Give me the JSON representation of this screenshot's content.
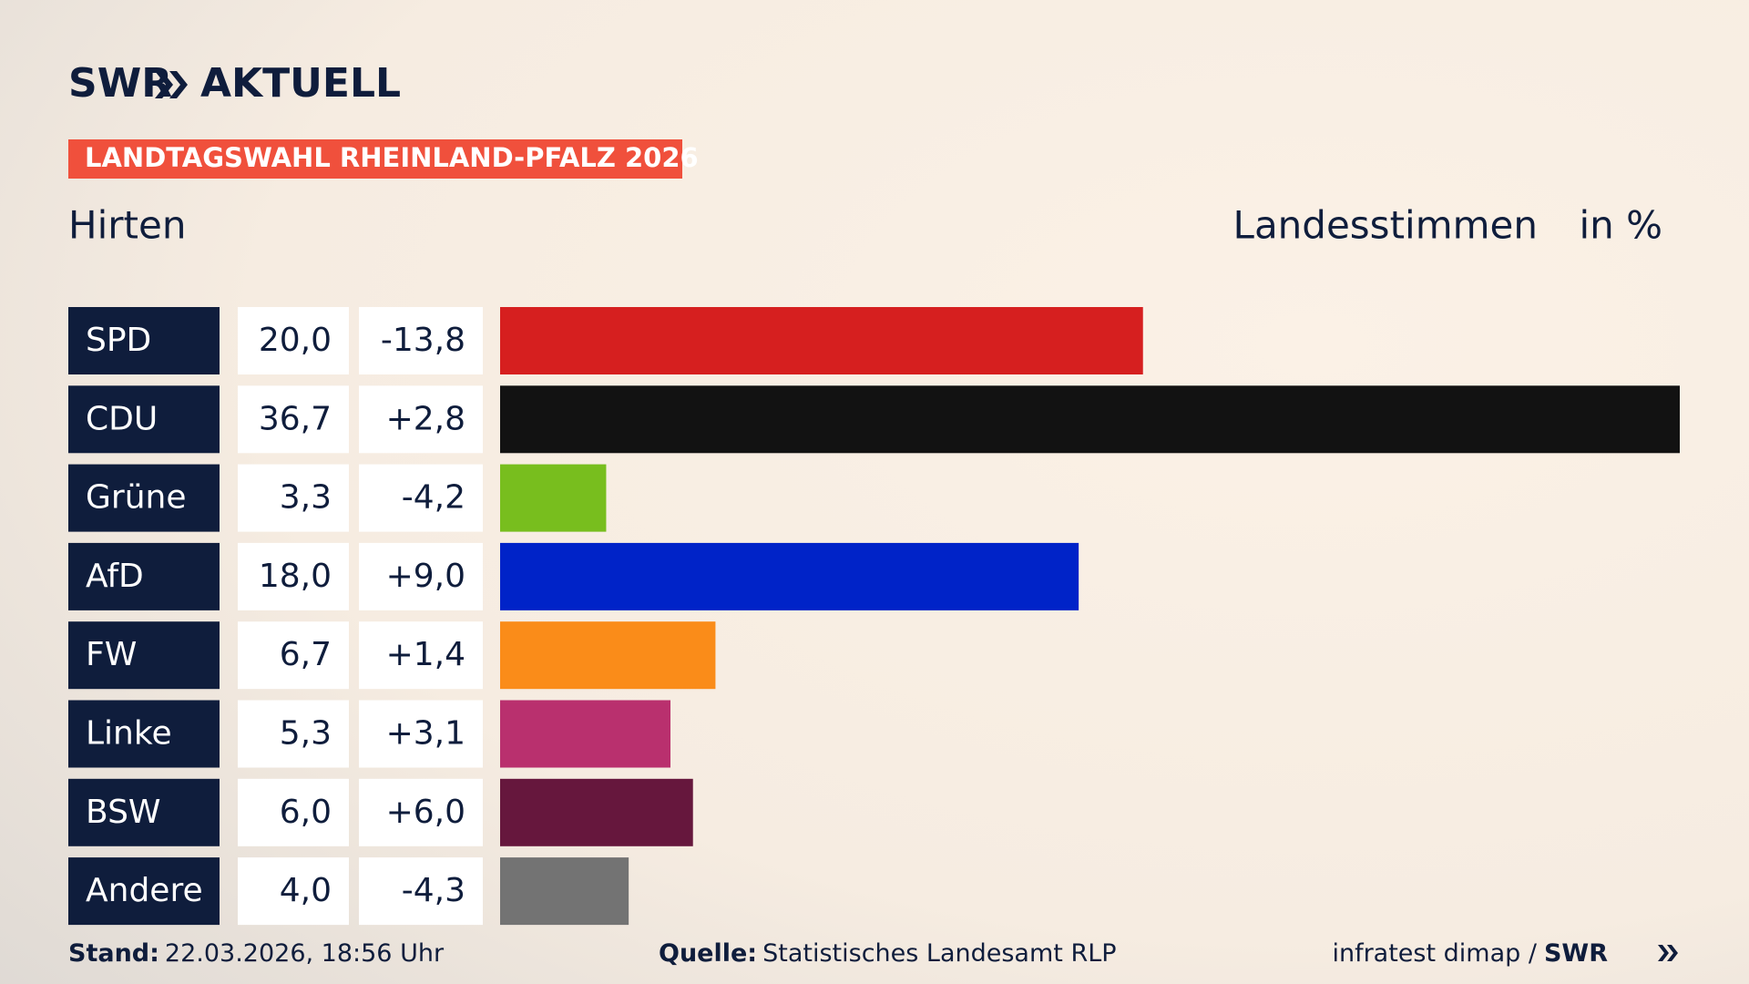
{
  "chart_data": {
    "type": "bar",
    "brand": "SWR",
    "brand_suffix": "AKTUELL",
    "banner": "LANDTAGSWAHL RHEINLAND-PFALZ 2026",
    "title": "Hirten",
    "value_label": "Landesstimmen",
    "unit": "in %",
    "categories": [
      "SPD",
      "CDU",
      "Grüne",
      "AfD",
      "FW",
      "Linke",
      "BSW",
      "Andere"
    ],
    "values": [
      20.0,
      36.7,
      3.3,
      18.0,
      6.7,
      5.3,
      6.0,
      4.0
    ],
    "value_labels": [
      "20,0",
      "36,7",
      "3,3",
      "18,0",
      "6,7",
      "5,3",
      "6,0",
      "4,0"
    ],
    "changes": [
      "-13,8",
      "+2,8",
      "-4,2",
      "+9,0",
      "+1,4",
      "+3,1",
      "+6,0",
      "-4,3"
    ],
    "colors": [
      "#d61f1f",
      "#121212",
      "#78be1e",
      "#0023c8",
      "#fa8c19",
      "#b9306e",
      "#66173d",
      "#737373"
    ],
    "footer": {
      "stand_label": "Stand:",
      "stand": "22.03.2026, 18:56 Uhr",
      "source_label": "Quelle:",
      "source": "Statistisches Landesamt RLP",
      "credit": "infratest dimap /",
      "credit_brand": "SWR"
    }
  }
}
